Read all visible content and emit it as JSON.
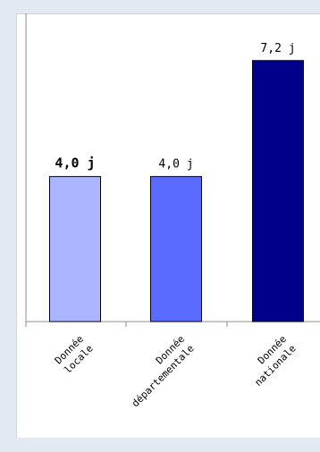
{
  "chart_data": {
    "type": "bar",
    "categories": [
      "Donnée locale",
      "Donnée départementale",
      "Donnée nationale"
    ],
    "category_lines": [
      [
        "Donnée",
        "locale"
      ],
      [
        "Donnée",
        "départementale"
      ],
      [
        "Donnée",
        "nationale"
      ]
    ],
    "values": [
      4.0,
      4.0,
      7.2
    ],
    "value_labels": [
      "4,0 j",
      "4,0 j",
      "7,2 j"
    ],
    "value_label_bold": [
      true,
      false,
      false
    ],
    "colors": [
      "#aab4ff",
      "#5c6bff",
      "#00008b"
    ],
    "ylim": [
      0,
      8.5
    ],
    "grid": false,
    "legend": "none",
    "title": "",
    "xlabel": "",
    "ylabel": ""
  }
}
